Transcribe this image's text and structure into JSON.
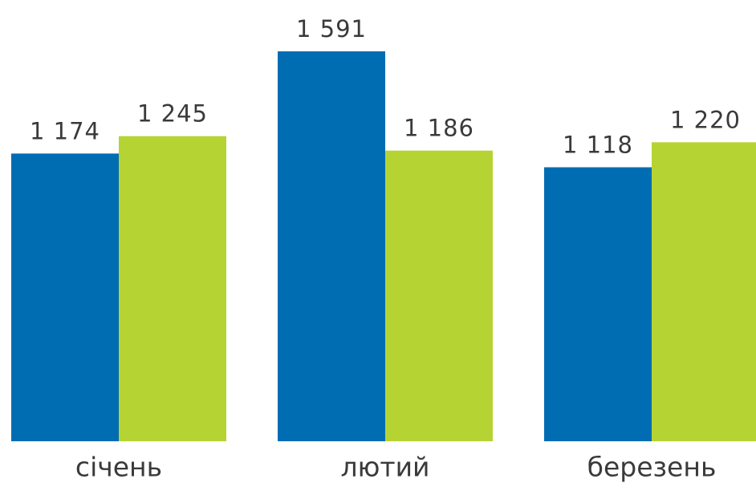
{
  "chart_data": {
    "type": "bar",
    "categories": [
      "січень",
      "лютий",
      "березень"
    ],
    "series": [
      {
        "color": "#006db3",
        "values": [
          1174,
          1591,
          1118
        ],
        "value_labels": [
          "1 174",
          "1 591",
          "1 118"
        ]
      },
      {
        "color": "#b6d334",
        "values": [
          1245,
          1186,
          1220
        ],
        "value_labels": [
          "1 245",
          "1 186",
          "1 220"
        ]
      }
    ]
  }
}
